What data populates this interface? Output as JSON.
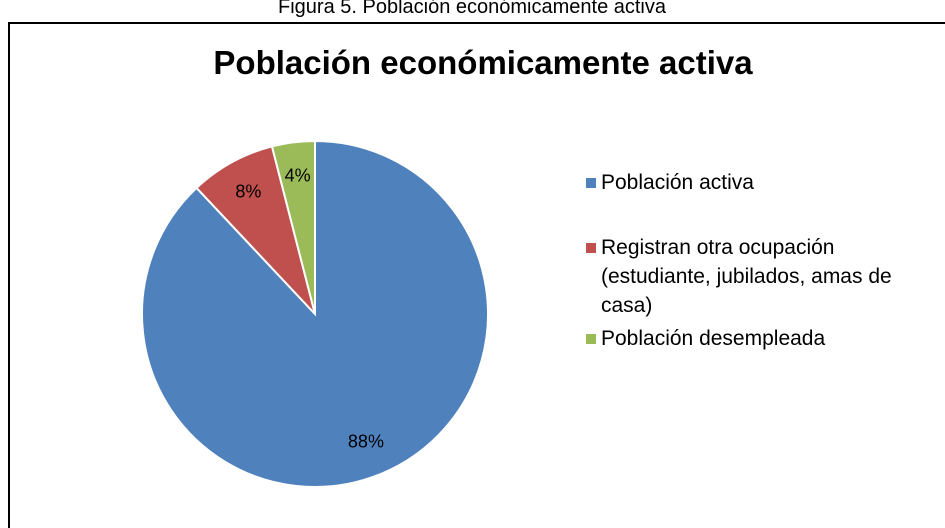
{
  "caption": "Figura 5. Población económicamente activa",
  "chart_data": {
    "type": "pie",
    "title": "Población económicamente activa",
    "categories": [
      "Población activa",
      "Registran otra ocupación (estudiante, jubilados, amas de casa)",
      "Población desempleada"
    ],
    "values": [
      88,
      8,
      4
    ],
    "value_labels": [
      "88%",
      "8%",
      "4%"
    ],
    "colors": [
      "#4f81bd",
      "#c0504d",
      "#9bbb59"
    ],
    "legend": "right"
  }
}
